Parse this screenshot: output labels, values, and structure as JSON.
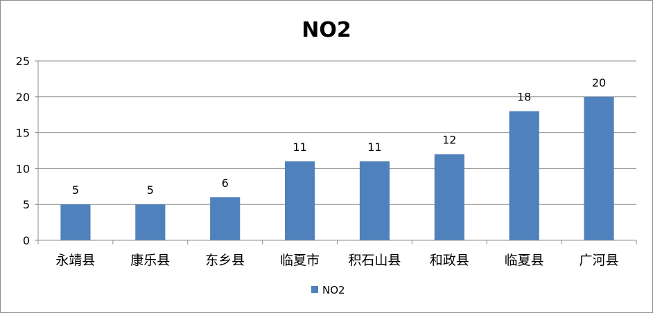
{
  "chart_data": {
    "type": "bar",
    "title": "NO2",
    "categories": [
      "永靖县",
      "康乐县",
      "东乡县",
      "临夏市",
      "积石山县",
      "和政县",
      "临夏县",
      "广河县"
    ],
    "series": [
      {
        "name": "NO2",
        "values": [
          5,
          5,
          6,
          11,
          11,
          12,
          18,
          20
        ],
        "color": "#4f81bd"
      }
    ],
    "yticks": [
      "0",
      "5",
      "10",
      "15",
      "20",
      "25"
    ],
    "ylim": [
      0,
      25
    ],
    "grid": true,
    "legend": "bottom",
    "data_labels": true
  }
}
